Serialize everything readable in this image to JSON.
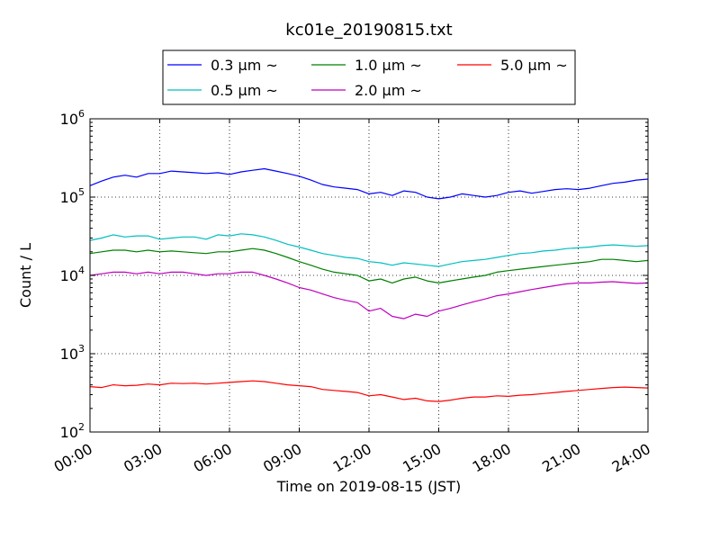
{
  "chart_data": {
    "type": "line",
    "title": "kc01e_20190815.txt",
    "xlabel": "Time on 2019-08-15 (JST)",
    "ylabel": "Count / L",
    "yscale": "log",
    "ylim": [
      100,
      1000000
    ],
    "xlim": [
      "00:00",
      "24:00"
    ],
    "grid": true,
    "legend_position": "top-center",
    "x_ticks": [
      "00:00",
      "03:00",
      "06:00",
      "09:00",
      "12:00",
      "15:00",
      "18:00",
      "21:00",
      "24:00"
    ],
    "y_ticks": [
      {
        "base": "10",
        "exp": "2",
        "value": 100
      },
      {
        "base": "10",
        "exp": "3",
        "value": 1000
      },
      {
        "base": "10",
        "exp": "4",
        "value": 10000
      },
      {
        "base": "10",
        "exp": "5",
        "value": 100000
      },
      {
        "base": "10",
        "exp": "6",
        "value": 1000000
      }
    ],
    "x_hours": [
      0,
      0.5,
      1,
      1.5,
      2,
      2.5,
      3,
      3.5,
      4,
      4.5,
      5,
      5.5,
      6,
      6.5,
      7,
      7.5,
      8,
      8.5,
      9,
      9.5,
      10,
      10.5,
      11,
      11.5,
      12,
      12.5,
      13,
      13.5,
      14,
      14.5,
      15,
      15.5,
      16,
      16.5,
      17,
      17.5,
      18,
      18.5,
      19,
      19.5,
      20,
      20.5,
      21,
      21.5,
      22,
      22.5,
      23,
      23.5,
      24
    ],
    "series": [
      {
        "name": "0.3 μm ~",
        "color": "#0000ff",
        "values": [
          140000,
          160000,
          180000,
          190000,
          180000,
          200000,
          200000,
          215000,
          210000,
          205000,
          200000,
          205000,
          195000,
          210000,
          220000,
          230000,
          215000,
          200000,
          185000,
          165000,
          145000,
          135000,
          130000,
          125000,
          110000,
          115000,
          105000,
          120000,
          115000,
          100000,
          95000,
          100000,
          110000,
          105000,
          100000,
          105000,
          115000,
          120000,
          112000,
          118000,
          125000,
          128000,
          125000,
          130000,
          140000,
          150000,
          155000,
          165000,
          170000
        ]
      },
      {
        "name": "0.5 μm ~",
        "color": "#00bfbf",
        "values": [
          28000,
          30000,
          33000,
          31000,
          32000,
          32000,
          29000,
          30000,
          31000,
          31000,
          29000,
          33000,
          32000,
          34000,
          33000,
          31000,
          28000,
          25000,
          23000,
          21000,
          19000,
          18000,
          17000,
          16500,
          15000,
          14500,
          13500,
          14500,
          14000,
          13500,
          13000,
          14000,
          15000,
          15500,
          16000,
          17000,
          18000,
          19000,
          19500,
          20500,
          21000,
          22000,
          22500,
          23000,
          24000,
          24500,
          24000,
          23500,
          24000
        ]
      },
      {
        "name": "1.0 μm ~",
        "color": "#008000",
        "values": [
          19000,
          20000,
          21000,
          21000,
          20000,
          21000,
          20000,
          20500,
          20000,
          19500,
          19000,
          20000,
          20000,
          21000,
          22000,
          21000,
          19000,
          17000,
          15000,
          13500,
          12000,
          11000,
          10500,
          10000,
          8500,
          9000,
          8000,
          9000,
          9500,
          8500,
          8000,
          8500,
          9000,
          9500,
          10000,
          11000,
          11500,
          12000,
          12500,
          13000,
          13500,
          14000,
          14500,
          15000,
          16000,
          16000,
          15500,
          15000,
          15500
        ]
      },
      {
        "name": "2.0 μm ~",
        "color": "#bf00bf",
        "values": [
          10000,
          10500,
          11000,
          11000,
          10500,
          11000,
          10500,
          11000,
          11000,
          10500,
          10000,
          10500,
          10500,
          11000,
          11000,
          10000,
          9000,
          8000,
          7000,
          6500,
          5800,
          5200,
          4800,
          4500,
          3500,
          3800,
          3000,
          2800,
          3200,
          3000,
          3500,
          3800,
          4200,
          4600,
          5000,
          5500,
          5800,
          6200,
          6600,
          7000,
          7400,
          7800,
          8000,
          8000,
          8200,
          8300,
          8100,
          7900,
          8000
        ]
      },
      {
        "name": "5.0 μm ~",
        "color": "#ff0000",
        "values": [
          380,
          370,
          400,
          390,
          395,
          410,
          400,
          420,
          415,
          420,
          410,
          420,
          430,
          440,
          450,
          440,
          420,
          400,
          390,
          380,
          350,
          340,
          330,
          320,
          290,
          300,
          280,
          260,
          270,
          250,
          245,
          255,
          270,
          280,
          280,
          290,
          285,
          295,
          300,
          310,
          320,
          330,
          340,
          350,
          360,
          370,
          375,
          370,
          365
        ]
      }
    ]
  }
}
